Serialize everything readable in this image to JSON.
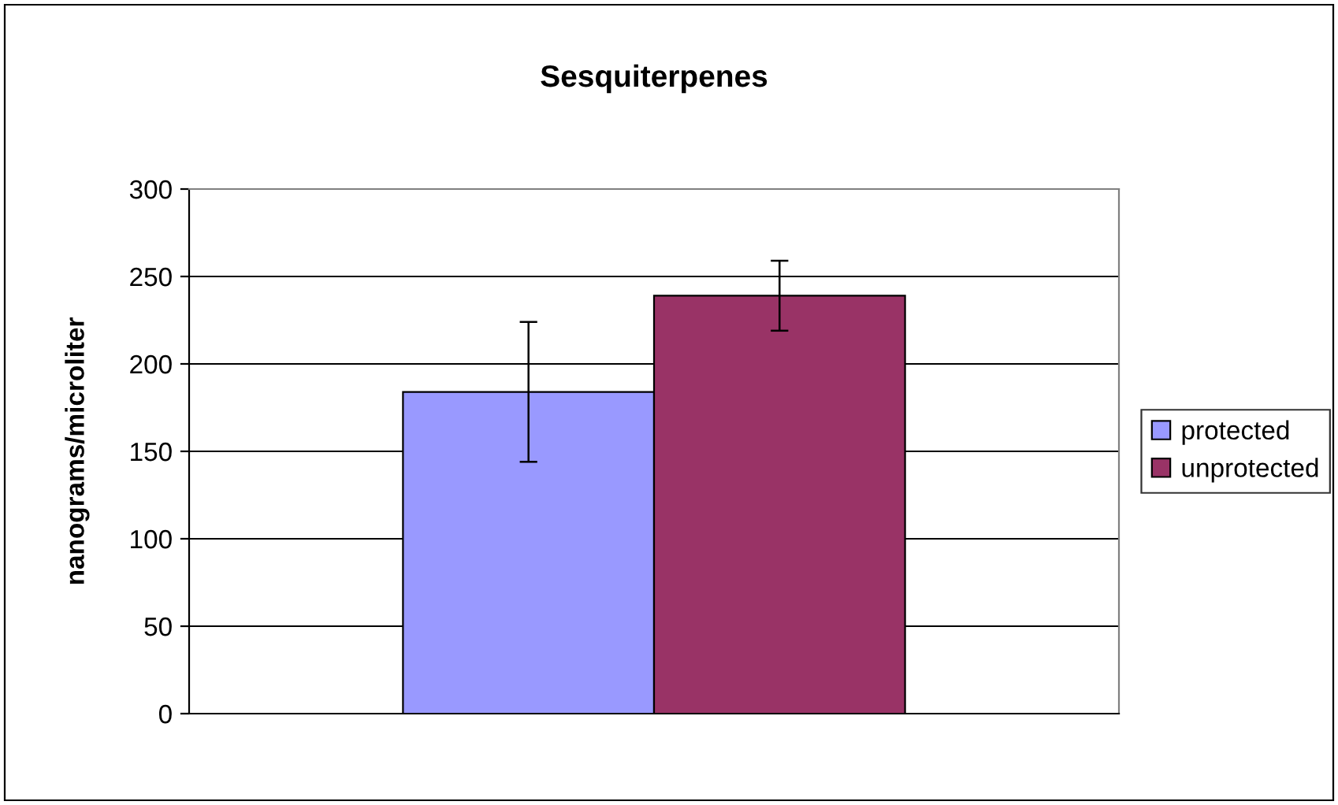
{
  "chart_data": {
    "type": "bar",
    "title": "Sesquiterpenes",
    "ylabel": "nanograms/microliter",
    "categories": [
      null
    ],
    "series": [
      {
        "name": "protected",
        "color": "#9999ff",
        "values": [
          184
        ],
        "errors": [
          40
        ]
      },
      {
        "name": "unprotected",
        "color": "#993366",
        "values": [
          239
        ],
        "errors": [
          20
        ]
      }
    ],
    "ylim": [
      0,
      300
    ],
    "yticks": [
      0,
      50,
      100,
      150,
      200,
      250,
      300
    ],
    "grid": "y",
    "legend": "right"
  }
}
